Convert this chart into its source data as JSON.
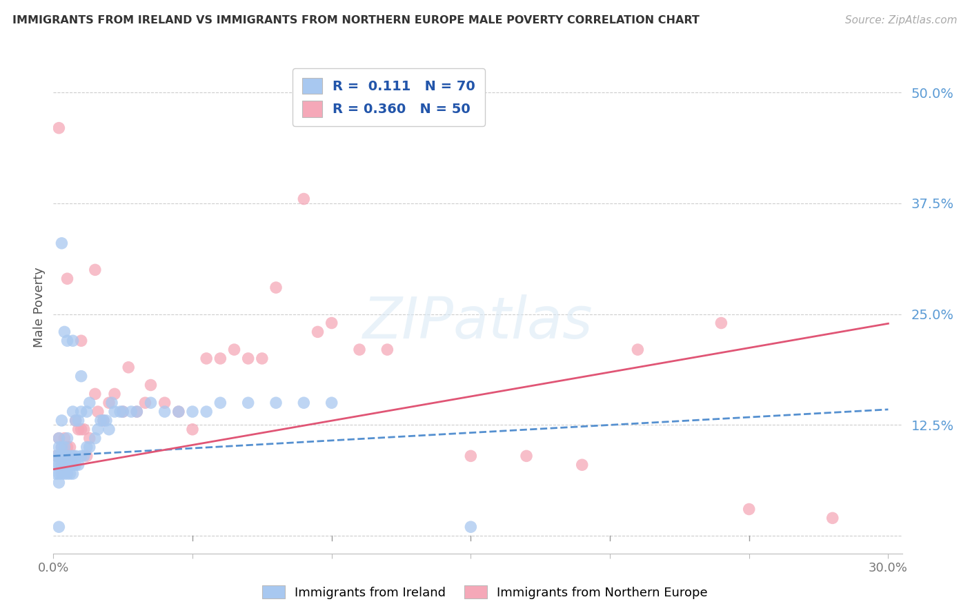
{
  "title": "IMMIGRANTS FROM IRELAND VS IMMIGRANTS FROM NORTHERN EUROPE MALE POVERTY CORRELATION CHART",
  "source": "Source: ZipAtlas.com",
  "ylabel": "Male Poverty",
  "xlim": [
    0.0,
    0.305
  ],
  "ylim": [
    -0.02,
    0.535
  ],
  "yticks_right": [
    0.0,
    0.125,
    0.25,
    0.375,
    0.5
  ],
  "ytick_labels_right": [
    "",
    "12.5%",
    "25.0%",
    "37.5%",
    "50.0%"
  ],
  "xtick_positions": [
    0.0,
    0.05,
    0.1,
    0.15,
    0.2,
    0.25,
    0.3
  ],
  "xtick_labels": [
    "0.0%",
    "",
    "",
    "",
    "",
    "",
    "30.0%"
  ],
  "color_ireland": "#a8c8f0",
  "color_northern": "#f5a8b8",
  "color_ireland_line": "#5590d0",
  "color_northern_line": "#e05575",
  "r_ireland": 0.111,
  "n_ireland": 70,
  "r_northern": 0.36,
  "n_northern": 50,
  "legend_label1": "Immigrants from Ireland",
  "legend_label2": "Immigrants from Northern Europe",
  "watermark": "ZIPatlas",
  "ireland_x": [
    0.001,
    0.001,
    0.001,
    0.002,
    0.002,
    0.002,
    0.002,
    0.002,
    0.002,
    0.003,
    0.003,
    0.003,
    0.003,
    0.003,
    0.004,
    0.004,
    0.004,
    0.004,
    0.005,
    0.005,
    0.005,
    0.005,
    0.006,
    0.006,
    0.006,
    0.007,
    0.007,
    0.007,
    0.007,
    0.008,
    0.008,
    0.008,
    0.009,
    0.009,
    0.01,
    0.01,
    0.011,
    0.012,
    0.012,
    0.013,
    0.013,
    0.015,
    0.016,
    0.017,
    0.018,
    0.019,
    0.02,
    0.021,
    0.022,
    0.024,
    0.025,
    0.028,
    0.03,
    0.035,
    0.04,
    0.045,
    0.05,
    0.055,
    0.06,
    0.07,
    0.08,
    0.09,
    0.1,
    0.003,
    0.004,
    0.005,
    0.007,
    0.01,
    0.15,
    0.002
  ],
  "ireland_y": [
    0.07,
    0.08,
    0.09,
    0.06,
    0.07,
    0.08,
    0.09,
    0.1,
    0.11,
    0.07,
    0.08,
    0.09,
    0.1,
    0.13,
    0.07,
    0.08,
    0.09,
    0.1,
    0.07,
    0.08,
    0.09,
    0.11,
    0.07,
    0.08,
    0.09,
    0.07,
    0.08,
    0.09,
    0.14,
    0.08,
    0.09,
    0.13,
    0.08,
    0.13,
    0.09,
    0.14,
    0.09,
    0.1,
    0.14,
    0.1,
    0.15,
    0.11,
    0.12,
    0.13,
    0.13,
    0.13,
    0.12,
    0.15,
    0.14,
    0.14,
    0.14,
    0.14,
    0.14,
    0.15,
    0.14,
    0.14,
    0.14,
    0.14,
    0.15,
    0.15,
    0.15,
    0.15,
    0.15,
    0.33,
    0.23,
    0.22,
    0.22,
    0.18,
    0.01,
    0.01
  ],
  "northern_x": [
    0.001,
    0.002,
    0.003,
    0.003,
    0.004,
    0.004,
    0.005,
    0.006,
    0.007,
    0.008,
    0.009,
    0.01,
    0.011,
    0.012,
    0.013,
    0.015,
    0.016,
    0.018,
    0.02,
    0.022,
    0.025,
    0.027,
    0.03,
    0.033,
    0.035,
    0.04,
    0.045,
    0.05,
    0.055,
    0.06,
    0.065,
    0.07,
    0.075,
    0.08,
    0.09,
    0.095,
    0.1,
    0.11,
    0.12,
    0.15,
    0.17,
    0.19,
    0.21,
    0.24,
    0.25,
    0.28,
    0.002,
    0.005,
    0.01,
    0.015
  ],
  "northern_y": [
    0.09,
    0.11,
    0.1,
    0.08,
    0.09,
    0.11,
    0.1,
    0.1,
    0.09,
    0.13,
    0.12,
    0.12,
    0.12,
    0.09,
    0.11,
    0.16,
    0.14,
    0.13,
    0.15,
    0.16,
    0.14,
    0.19,
    0.14,
    0.15,
    0.17,
    0.15,
    0.14,
    0.12,
    0.2,
    0.2,
    0.21,
    0.2,
    0.2,
    0.28,
    0.38,
    0.23,
    0.24,
    0.21,
    0.21,
    0.09,
    0.09,
    0.08,
    0.21,
    0.24,
    0.03,
    0.02,
    0.46,
    0.29,
    0.22,
    0.3
  ]
}
